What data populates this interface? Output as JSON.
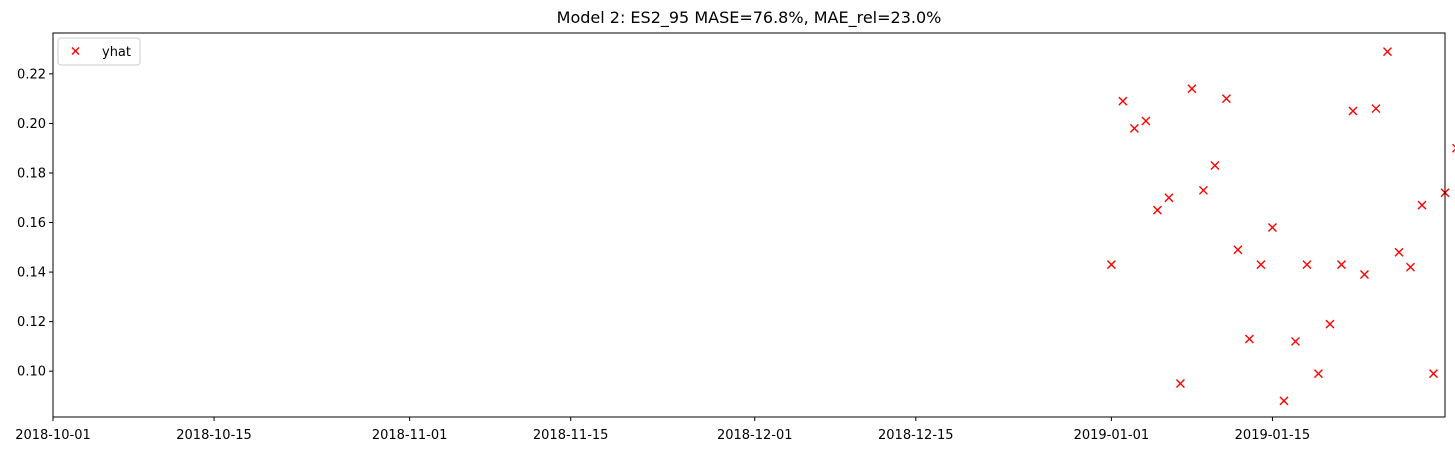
{
  "chart_data": {
    "type": "scatter",
    "title": "Model 2: ES2_95 MASE=76.8%, MAE_rel=23.0%",
    "xlabel": "",
    "ylabel": "",
    "xlim": [
      "2018-10-01",
      "2019-01-30"
    ],
    "ylim": [
      0.0815,
      0.2365
    ],
    "x_ticks": [
      "2018-10-01",
      "2018-10-15",
      "2018-11-01",
      "2018-11-15",
      "2018-12-01",
      "2018-12-15",
      "2019-01-01",
      "2019-01-15"
    ],
    "y_ticks": [
      "0.10",
      "0.12",
      "0.14",
      "0.16",
      "0.18",
      "0.20",
      "0.22"
    ],
    "legend": {
      "position": "upper-left",
      "entries": [
        "yhat"
      ]
    },
    "grid": false,
    "series": [
      {
        "name": "yhat",
        "marker": "x",
        "color": "#ff0000",
        "points": [
          {
            "x": "2019-01-01",
            "y": 0.143
          },
          {
            "x": "2019-01-02",
            "y": 0.209
          },
          {
            "x": "2019-01-03",
            "y": 0.198
          },
          {
            "x": "2019-01-04",
            "y": 0.201
          },
          {
            "x": "2019-01-05",
            "y": 0.165
          },
          {
            "x": "2019-01-06",
            "y": 0.17
          },
          {
            "x": "2019-01-07",
            "y": 0.095
          },
          {
            "x": "2019-01-08",
            "y": 0.214
          },
          {
            "x": "2019-01-09",
            "y": 0.173
          },
          {
            "x": "2019-01-10",
            "y": 0.183
          },
          {
            "x": "2019-01-11",
            "y": 0.21
          },
          {
            "x": "2019-01-12",
            "y": 0.149
          },
          {
            "x": "2019-01-13",
            "y": 0.113
          },
          {
            "x": "2019-01-14",
            "y": 0.143
          },
          {
            "x": "2019-01-15",
            "y": 0.158
          },
          {
            "x": "2019-01-16",
            "y": 0.088
          },
          {
            "x": "2019-01-17",
            "y": 0.112
          },
          {
            "x": "2019-01-18",
            "y": 0.143
          },
          {
            "x": "2019-01-19",
            "y": 0.099
          },
          {
            "x": "2019-01-20",
            "y": 0.119
          },
          {
            "x": "2019-01-21",
            "y": 0.143
          },
          {
            "x": "2019-01-22",
            "y": 0.205
          },
          {
            "x": "2019-01-23",
            "y": 0.139
          },
          {
            "x": "2019-01-24",
            "y": 0.206
          },
          {
            "x": "2019-01-25",
            "y": 0.229
          },
          {
            "x": "2019-01-26",
            "y": 0.148
          },
          {
            "x": "2019-01-27",
            "y": 0.142
          },
          {
            "x": "2019-01-28",
            "y": 0.167
          },
          {
            "x": "2019-01-29",
            "y": 0.099
          },
          {
            "x": "2019-01-30",
            "y": 0.172
          },
          {
            "x": "2019-01-31",
            "y": 0.19
          }
        ]
      }
    ]
  }
}
